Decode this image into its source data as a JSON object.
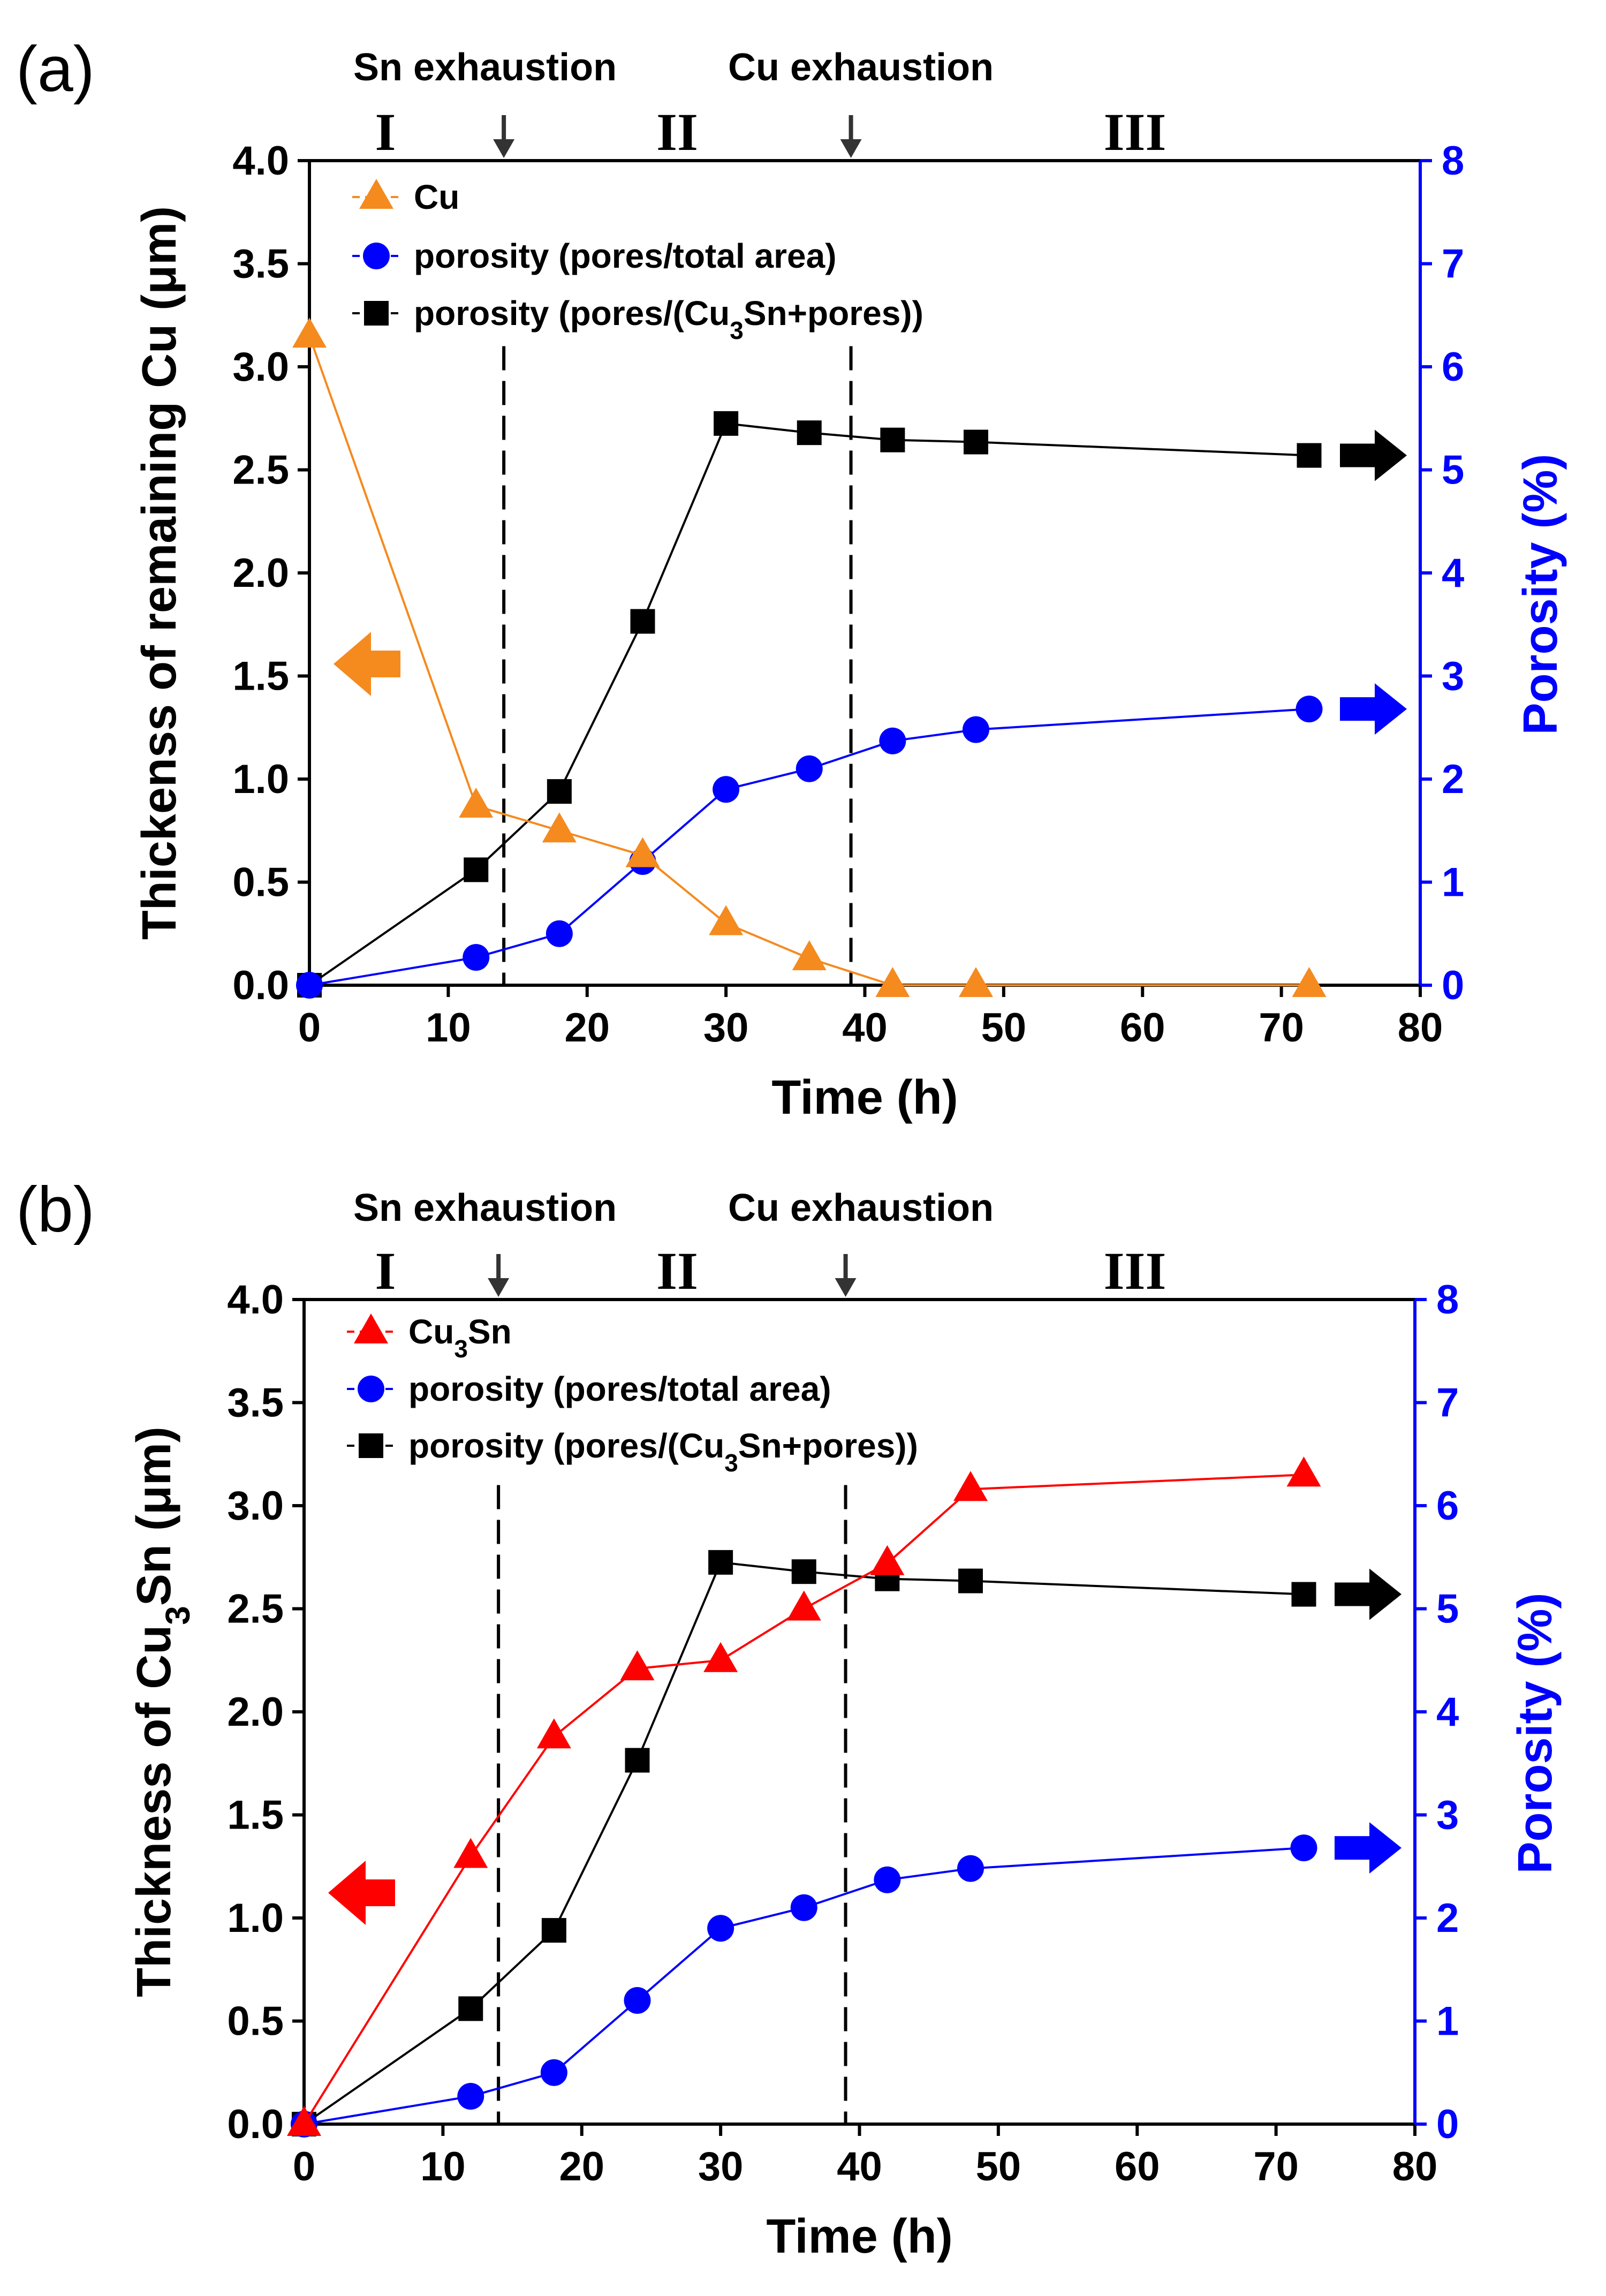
{
  "chart_data": [
    {
      "type": "line",
      "panel_label": "(a)",
      "xlabel": "Time (h)",
      "ylabel": "Thickenss of remaining Cu (μm)",
      "ylabel_right": "Porosity (%)",
      "xlim": [
        0,
        80
      ],
      "ylim": [
        0,
        4.0
      ],
      "ylim_right": [
        0,
        8
      ],
      "x_ticks": [
        "0",
        "10",
        "20",
        "30",
        "40",
        "50",
        "60",
        "70",
        "80"
      ],
      "y_ticks": [
        "0.0",
        "0.5",
        "1.0",
        "1.5",
        "2.0",
        "2.5",
        "3.0",
        "3.5",
        "4.0"
      ],
      "y_ticks_right": [
        "0",
        "1",
        "2",
        "3",
        "4",
        "5",
        "6",
        "7",
        "8"
      ],
      "phase_labels": {
        "sn": "Sn exhaustion",
        "cu": "Cu exhaustion",
        "i": "I",
        "ii": "II",
        "iii": "III"
      },
      "phase_lines_x": [
        14,
        39
      ],
      "series": [
        {
          "name": "Cu",
          "axis": "left",
          "color": "#f58a1f",
          "marker": "triangle",
          "x": [
            0,
            12,
            18,
            24,
            30,
            36,
            42,
            48,
            72
          ],
          "y": [
            3.15,
            0.87,
            0.75,
            0.63,
            0.3,
            0.13,
            0.0,
            0.0,
            0.0
          ]
        },
        {
          "name": "porosity (pores/total area)",
          "axis": "right",
          "color": "#0000ff",
          "marker": "circle",
          "x": [
            0,
            12,
            18,
            24,
            30,
            36,
            42,
            48,
            72
          ],
          "y": [
            0,
            0.27,
            0.5,
            1.2,
            1.9,
            2.1,
            2.37,
            2.48,
            2.68
          ]
        },
        {
          "name": "porosity (pores/(Cu3Sn+pores))",
          "axis": "right",
          "color": "#000000",
          "marker": "square",
          "x": [
            0,
            12,
            18,
            24,
            30,
            36,
            42,
            48,
            72
          ],
          "y": [
            0,
            1.12,
            1.88,
            3.53,
            5.45,
            5.36,
            5.29,
            5.27,
            5.14
          ]
        }
      ]
    },
    {
      "type": "line",
      "panel_label": "(b)",
      "xlabel": "Time (h)",
      "ylabel": "Thickness of Cu3Sn (μm)",
      "ylabel_right": "Porosity (%)",
      "xlim": [
        0,
        80
      ],
      "ylim": [
        0,
        4.0
      ],
      "ylim_right": [
        0,
        8
      ],
      "x_ticks": [
        "0",
        "10",
        "20",
        "30",
        "40",
        "50",
        "60",
        "70",
        "80"
      ],
      "y_ticks": [
        "0.0",
        "0.5",
        "1.0",
        "1.5",
        "2.0",
        "2.5",
        "3.0",
        "3.5",
        "4.0"
      ],
      "y_ticks_right": [
        "0",
        "1",
        "2",
        "3",
        "4",
        "5",
        "6",
        "7",
        "8"
      ],
      "phase_labels": {
        "sn": "Sn exhaustion",
        "cu": "Cu exhaustion",
        "i": "I",
        "ii": "II",
        "iii": "III"
      },
      "phase_lines_x": [
        14,
        39
      ],
      "series": [
        {
          "name": "Cu3Sn",
          "axis": "left",
          "color": "#ff0000",
          "marker": "triangle",
          "x": [
            0,
            12,
            18,
            24,
            30,
            36,
            42,
            48,
            72
          ],
          "y": [
            0,
            1.3,
            1.88,
            2.21,
            2.25,
            2.5,
            2.72,
            3.08,
            3.15
          ]
        },
        {
          "name": "porosity (pores/total area)",
          "axis": "right",
          "color": "#0000ff",
          "marker": "circle",
          "x": [
            0,
            12,
            18,
            24,
            30,
            36,
            42,
            48,
            72
          ],
          "y": [
            0,
            0.27,
            0.5,
            1.2,
            1.9,
            2.1,
            2.37,
            2.48,
            2.68
          ]
        },
        {
          "name": "porosity (pores/(Cu3Sn+pores))",
          "axis": "right",
          "color": "#000000",
          "marker": "square",
          "x": [
            0,
            12,
            18,
            24,
            30,
            36,
            42,
            48,
            72
          ],
          "y": [
            0,
            1.12,
            1.88,
            3.53,
            5.45,
            5.36,
            5.29,
            5.27,
            5.14
          ]
        }
      ]
    }
  ]
}
